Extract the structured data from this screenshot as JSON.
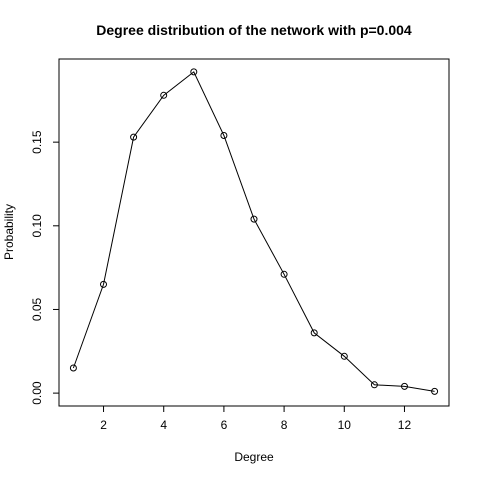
{
  "chart_data": {
    "type": "line",
    "title": "Degree distribution of the network with p=0.004",
    "xlabel": "Degree",
    "ylabel": "Probability",
    "xlim": [
      0.52,
      13.48
    ],
    "ylim": [
      -0.0077,
      0.1997
    ],
    "x_ticks": [
      2,
      4,
      6,
      8,
      10,
      12
    ],
    "y_ticks": [
      0.0,
      0.05,
      0.1,
      0.15
    ],
    "y_tick_labels": [
      "0.00",
      "0.05",
      "0.10",
      "0.15"
    ],
    "grid": false,
    "markers": "open-circle",
    "series": [
      {
        "x": [
          1,
          2,
          3,
          4,
          5,
          6,
          7,
          8,
          9,
          10,
          11,
          12,
          13
        ],
        "values": [
          0.015,
          0.065,
          0.153,
          0.178,
          0.192,
          0.154,
          0.104,
          0.071,
          0.036,
          0.022,
          0.005,
          0.004,
          0.001
        ]
      }
    ]
  }
}
